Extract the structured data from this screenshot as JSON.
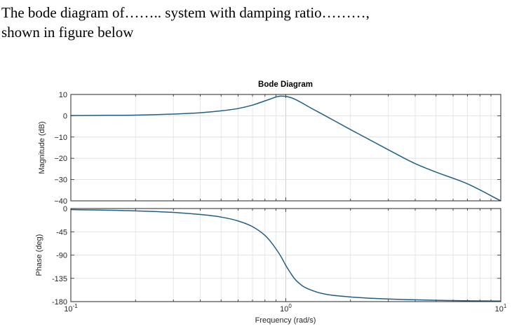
{
  "question": {
    "line1": "The bode diagram of…….. system with damping ratio………,",
    "line2": "shown in figure below"
  },
  "chart_data": {
    "type": "line",
    "title": "Bode Diagram",
    "xlabel": "Frequency  (rad/s)",
    "xscale": "log",
    "xlim": [
      0.1,
      10
    ],
    "x_ticks": [
      {
        "base": "10",
        "exp": "-1"
      },
      {
        "base": "10",
        "exp": "0"
      },
      {
        "base": "10",
        "exp": "1"
      }
    ],
    "grid": true,
    "line_color": "#1f5f86",
    "panels": [
      {
        "name": "magnitude",
        "ylabel": "Magnitude (dB)",
        "ylim": [
          -40,
          10
        ],
        "yticks": [
          "10",
          "0",
          "−10",
          "−20",
          "−30",
          "−40"
        ],
        "x": [
          0.1,
          0.15,
          0.2,
          0.3,
          0.4,
          0.5,
          0.6,
          0.7,
          0.8,
          0.85,
          0.9,
          0.95,
          1.0,
          1.05,
          1.1,
          1.2,
          1.3,
          1.5,
          2.0,
          3.0,
          4.0,
          5.0,
          7.0,
          10.0
        ],
        "y": [
          0.1,
          0.2,
          0.3,
          0.8,
          1.4,
          2.3,
          3.4,
          5.0,
          7.0,
          7.9,
          8.8,
          9.2,
          9.1,
          8.6,
          7.8,
          5.8,
          3.8,
          0.4,
          -6.5,
          -16.0,
          -22.5,
          -26.5,
          -32.0,
          -40.0
        ]
      },
      {
        "name": "phase",
        "ylabel": "Phase (deg)",
        "ylim": [
          -180,
          0
        ],
        "yticks": [
          "0",
          "-45",
          "-90",
          "-135",
          "-180"
        ],
        "x": [
          0.1,
          0.2,
          0.3,
          0.4,
          0.5,
          0.6,
          0.7,
          0.8,
          0.85,
          0.9,
          0.95,
          1.0,
          1.05,
          1.1,
          1.2,
          1.3,
          1.5,
          2.0,
          3.0,
          5.0,
          10.0
        ],
        "y": [
          -2,
          -4.5,
          -7.5,
          -11.5,
          -16.5,
          -24,
          -35,
          -52,
          -64,
          -78,
          -93,
          -110,
          -124,
          -136,
          -150,
          -157,
          -165,
          -171,
          -175,
          -177.5,
          -179
        ]
      }
    ]
  }
}
